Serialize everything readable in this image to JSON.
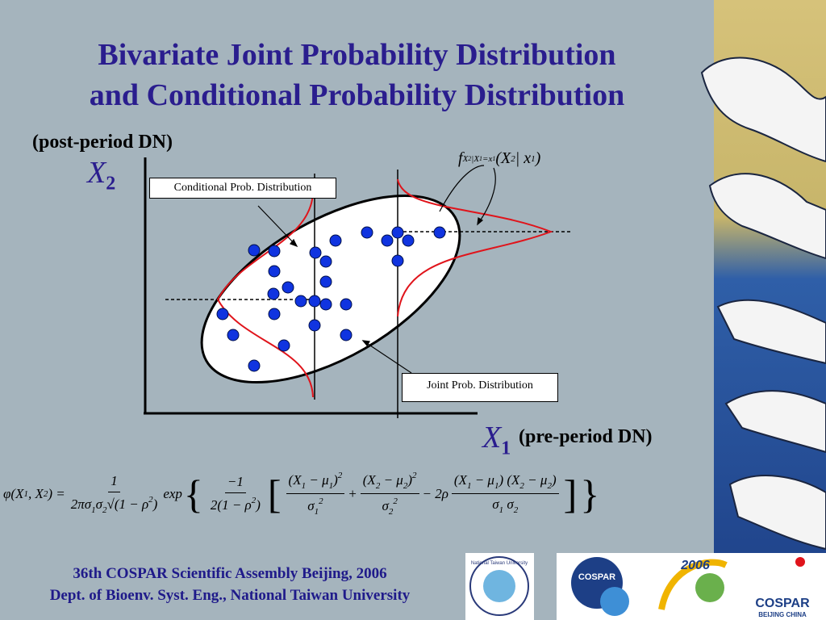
{
  "title": [
    "Bivariate Joint Probability Distribution",
    "and Conditional Probability Distribution"
  ],
  "y_axis": {
    "name": "X",
    "sub": "2",
    "label": "(post-period DN)"
  },
  "x_axis": {
    "name": "X",
    "sub": "1",
    "label": "(pre-period DN)"
  },
  "callouts": [
    "Conditional Prob. Distribution",
    "Joint Prob. Distribution"
  ],
  "conditional_formula": [
    {
      "t": "f"
    },
    {
      "b": "X"
    },
    {
      "bb": "2"
    },
    {
      "b": "|X"
    },
    {
      "bb": "1"
    },
    {
      "b": "=x"
    },
    {
      "bb": "1"
    },
    {
      "t": " (X"
    },
    {
      "b": "2"
    },
    {
      "t": " | x"
    },
    {
      "b": "1"
    },
    {
      "t": ")"
    }
  ],
  "joint_formula": [
    {
      "t": "φ(X"
    },
    {
      "b": "1"
    },
    {
      "t": ", X"
    },
    {
      "b": "2"
    },
    {
      "t": ") = "
    },
    {
      "num": [
        {
          "t": "1"
        }
      ],
      "den": [
        {
          "t": "2πσ"
        },
        {
          "b": "1"
        },
        {
          "t": "σ"
        },
        {
          "b": "2"
        },
        {
          "t": "√(1 − ρ"
        },
        {
          "p": "2"
        },
        {
          "t": ")"
        }
      ]
    },
    {
      "t": " exp"
    },
    {
      "big": "{"
    },
    {
      "num": [
        {
          "t": "−1"
        }
      ],
      "den": [
        {
          "t": "2(1 − ρ"
        },
        {
          "p": "2"
        },
        {
          "t": ")"
        }
      ]
    },
    {
      "big": "["
    },
    {
      "num": [
        {
          "t": "(X"
        },
        {
          "b": "1"
        },
        {
          "t": " − μ"
        },
        {
          "b": "1"
        },
        {
          "t": ")"
        },
        {
          "p": "2"
        }
      ],
      "den": [
        {
          "t": "σ"
        },
        {
          "b": "1"
        },
        {
          "p": "2"
        }
      ]
    },
    {
      "t": " + "
    },
    {
      "num": [
        {
          "t": "(X"
        },
        {
          "b": "2"
        },
        {
          "t": " − μ"
        },
        {
          "b": "2"
        },
        {
          "t": ")"
        },
        {
          "p": "2"
        }
      ],
      "den": [
        {
          "t": "σ"
        },
        {
          "b": "2"
        },
        {
          "p": "2"
        }
      ]
    },
    {
      "t": " − 2ρ "
    },
    {
      "num": [
        {
          "t": "(X"
        },
        {
          "b": "1"
        },
        {
          "t": " − μ"
        },
        {
          "b": "1"
        },
        {
          "t": ") (X"
        },
        {
          "b": "2"
        },
        {
          "t": " − μ"
        },
        {
          "b": "2"
        },
        {
          "t": ")"
        }
      ],
      "den": [
        {
          "t": "σ"
        },
        {
          "b": "1"
        },
        {
          "t": " σ"
        },
        {
          "b": "2"
        }
      ]
    },
    {
      "big": "]"
    },
    {
      "big": "}"
    }
  ],
  "footer": [
    "36th COSPAR  Scientific Assembly Beijing, 2006",
    "Dept. of Bioenv. Syst. Eng., National Taiwan University"
  ],
  "logos": {
    "ntu": "National Taiwan University",
    "cospar": "COSPAR",
    "year": "2006",
    "event": "COSPAR",
    "place": "BEIJING CHINA"
  }
}
